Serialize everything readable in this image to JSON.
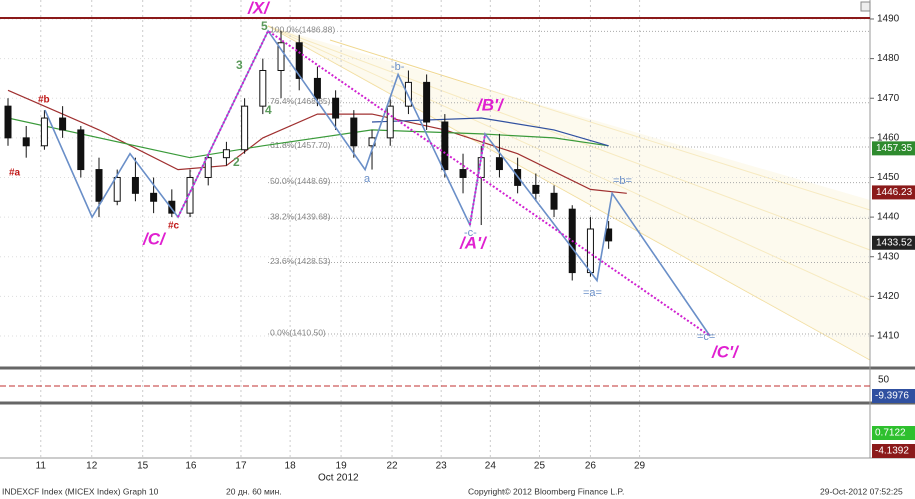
{
  "chart_data": {
    "type": "candlestick",
    "ylim": [
      1401.92,
      1494.79
    ],
    "yticks": [
      1410,
      1420,
      1430,
      1440,
      1450,
      1460,
      1470,
      1480,
      1490
    ],
    "xlim": [
      -0.44,
      47.36
    ],
    "xticks": [
      {
        "value": 1.8,
        "label": "11"
      },
      {
        "value": 4.6,
        "label": "12"
      },
      {
        "value": 7.4,
        "label": "15"
      },
      {
        "value": 10.05,
        "label": "16"
      },
      {
        "value": 12.8,
        "label": "17"
      },
      {
        "value": 15.5,
        "label": "18"
      },
      {
        "value": 18.3,
        "label": "19"
      },
      {
        "value": 21.1,
        "label": "22"
      },
      {
        "value": 23.8,
        "label": "23"
      },
      {
        "value": 26.5,
        "label": "24"
      },
      {
        "value": 29.2,
        "label": "25"
      },
      {
        "value": 32.0,
        "label": "26"
      },
      {
        "value": 34.7,
        "label": "29"
      }
    ],
    "month_label": "Oct 2012",
    "open": [
      1468,
      1460,
      1458,
      1465,
      1462,
      1452,
      1444,
      1450,
      1446,
      1444,
      1441,
      1450,
      1455,
      1457,
      1468,
      1477,
      1484,
      1475,
      1470,
      1465,
      1458,
      1460,
      1468,
      1474,
      1464,
      1452,
      1450,
      1455,
      1452,
      1448,
      1446,
      1442,
      1426,
      1437
    ],
    "high": [
      1470,
      1463,
      1467,
      1468,
      1463,
      1455,
      1452,
      1455,
      1450,
      1447,
      1452,
      1456,
      1459,
      1470,
      1480,
      1487,
      1486,
      1478,
      1472,
      1467,
      1462,
      1470,
      1477,
      1476,
      1466,
      1456,
      1458,
      1461,
      1455,
      1451,
      1448,
      1443,
      1440,
      1439
    ],
    "low": [
      1458,
      1455,
      1457,
      1460,
      1450,
      1440,
      1443,
      1444,
      1441,
      1440,
      1440,
      1448,
      1453,
      1456,
      1466,
      1470,
      1472,
      1468,
      1462,
      1455,
      1452,
      1458,
      1466,
      1462,
      1450,
      1446,
      1438,
      1450,
      1446,
      1444,
      1440,
      1424,
      1425,
      1432
    ],
    "close": [
      1460,
      1458,
      1465,
      1462,
      1452,
      1444,
      1450,
      1446,
      1444,
      1441,
      1450,
      1455,
      1457,
      1468,
      1477,
      1484,
      1475,
      1470,
      1465,
      1458,
      1460,
      1468,
      1474,
      1464,
      1452,
      1450,
      1455,
      1452,
      1448,
      1446,
      1442,
      1426,
      1437,
      1434
    ],
    "moving_averages": [
      {
        "color": "#a03030",
        "x": [
          0,
          5,
          9.34,
          12,
          14,
          17,
          20,
          24,
          28,
          32,
          34
        ],
        "values": [
          1472,
          1462,
          1452,
          1453,
          1460,
          1466,
          1466,
          1462,
          1456,
          1447,
          1446
        ]
      },
      {
        "color": "#3a9a3a",
        "x": [
          0,
          10,
          14,
          20,
          26,
          30,
          33
        ],
        "values": [
          1465,
          1455,
          1458,
          1462,
          1461,
          1460,
          1458
        ]
      },
      {
        "color": "#3050a0",
        "x": [
          20,
          26,
          30,
          33
        ],
        "values": [
          1464,
          1465,
          1462,
          1458
        ]
      }
    ],
    "wave_lines": [
      {
        "color": "#6a8fc8",
        "dashed": false,
        "x": [
          2.03,
          4.62,
          6.7,
          9.34,
          14.29,
          19.62,
          21.43,
          25.38,
          26.21,
          32.36,
          33.19,
          38.57
        ],
        "values": [
          1467,
          1440,
          1456,
          1440,
          1487,
          1452,
          1476,
          1438,
          1461,
          1424,
          1446,
          1410
        ]
      },
      {
        "color": "#d020d0",
        "dashed": true,
        "x": [
          9.34,
          14.29,
          38.57
        ],
        "values": [
          1440,
          1487,
          1410
        ]
      },
      {
        "color": "#d020d0",
        "dashed": true,
        "x": [
          25.38,
          26.21
        ],
        "values": [
          1438,
          1461
        ]
      }
    ],
    "fib_levels": [
      {
        "value": 1486.88,
        "label": "100.0%(1486.88)"
      },
      {
        "value": 1468.85,
        "label": "76.4%(1468.85)"
      },
      {
        "value": 1457.7,
        "label": "61.8%(1457.70)"
      },
      {
        "value": 1448.69,
        "label": "50.0%(1448.69)"
      },
      {
        "value": 1439.68,
        "label": "38.2%(1439.68)"
      },
      {
        "value": 1428.53,
        "label": "23.6%(1428.53)"
      },
      {
        "value": 1410.5,
        "label": "0.0%(1410.50)"
      }
    ],
    "price_tags": [
      {
        "value": 1457.35,
        "color": "#2e8b2e"
      },
      {
        "value": 1446.23,
        "color": "#8b1a1a"
      },
      {
        "value": 1433.52,
        "color": "#222222"
      }
    ],
    "annotations": [
      "/X/",
      "/B'/",
      "/A'/",
      "/C/",
      "/C'/",
      "#a",
      "#b",
      "#c",
      "-b-",
      "-c-",
      "=a=",
      "=b=",
      "=c=",
      "a",
      "5",
      "4",
      "3",
      "2"
    ],
    "lower_panels": {
      "tick": 50,
      "tags": [
        {
          "value": -9.3976,
          "color": "#3050a0"
        },
        {
          "value": 0.7122,
          "color": "#2ec02e"
        },
        {
          "value": -4.1392,
          "color": "#8b1a1a"
        }
      ]
    },
    "footer": [
      "INDEXCF Index (MICEX Index) Graph 10",
      "20 дн. 60 мин.",
      "Copyright© 2012 Bloomberg Finance L.P.",
      "29-Oct-2012 07:52:25"
    ]
  }
}
